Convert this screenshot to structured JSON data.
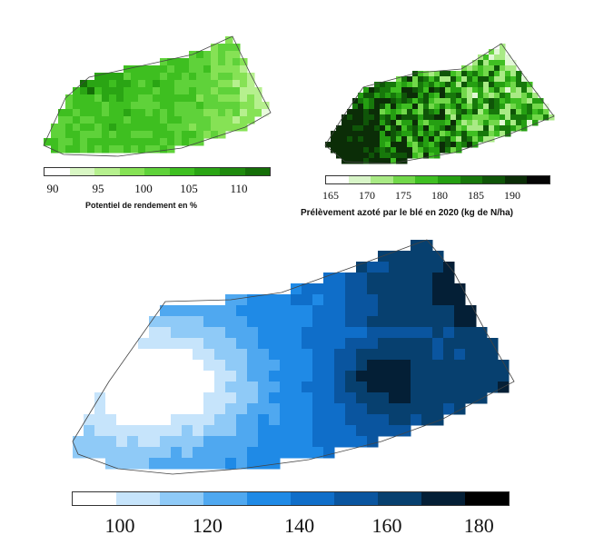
{
  "maps": [
    {
      "id": "yield-potential",
      "caption": "Potentiel de rendement en %",
      "ticks": [
        "90",
        "95",
        "100",
        "105",
        "110"
      ],
      "classes": [
        "#ffffff",
        "#d9f7c4",
        "#b6f08e",
        "#86e255",
        "#5fd23a",
        "#3ebf20",
        "#2aa514",
        "#1e8a0d",
        "#156e08"
      ],
      "colorRamp": [
        "#156e08",
        "#2aa514",
        "#3ebf20",
        "#5fd23a",
        "#86e255",
        "#b6f08e",
        "#e8fbdc"
      ]
    },
    {
      "id": "nitrogen-uptake",
      "caption": "Prélèvement azoté par le blé en 2020 (kg de N/ha)",
      "ticks": [
        "165",
        "170",
        "175",
        "180",
        "185",
        "190"
      ],
      "classes": [
        "#ffffff",
        "#d8f5c8",
        "#a9ea85",
        "#72d84a",
        "#3fbf22",
        "#259f12",
        "#17780b",
        "#0f5508",
        "#0b2d07",
        "#050505"
      ],
      "colorRamp": [
        "#0b2d07",
        "#0f5508",
        "#17780b",
        "#259f12",
        "#3fbf22",
        "#72d84a",
        "#a9ea85",
        "#e2f8d6"
      ]
    },
    {
      "id": "blue-variable",
      "caption": "",
      "ticks": [
        "100",
        "120",
        "140",
        "160",
        "180"
      ],
      "classes": [
        "#ffffff",
        "#c6e4fb",
        "#8fcaf7",
        "#4fa8f0",
        "#1f8ae6",
        "#0f6ec9",
        "#0a559f",
        "#07406f",
        "#041f36",
        "#000000"
      ],
      "colorRamp": [
        "#ffffff",
        "#c6e4fb",
        "#8fcaf7",
        "#4fa8f0",
        "#1f8ae6",
        "#0f6ec9",
        "#0a559f",
        "#07406f",
        "#041f36"
      ]
    }
  ]
}
